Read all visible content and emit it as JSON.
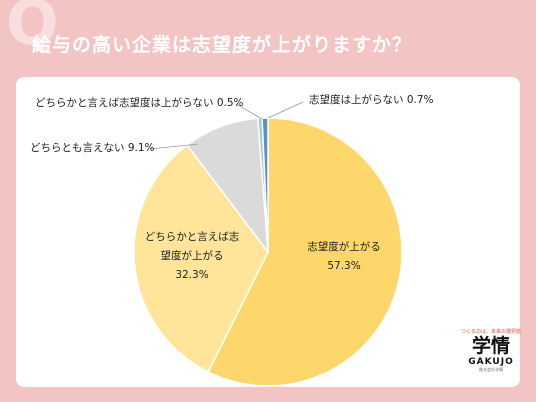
{
  "header": {
    "question_mark": "Q",
    "title": "給与の高い企業は志望度が上がりますか？"
  },
  "logo": {
    "tagline": "つくるのは、未来の選択肢",
    "name": "学情",
    "name_en": "GAKUJO",
    "sub": "株式会社学情"
  },
  "chart_data": {
    "type": "pie",
    "slices": [
      {
        "name": "志望度が上がる",
        "value": 57.3,
        "label_lines": [
          "志望度が上がる",
          "57.3%"
        ],
        "color": "#fdd76b"
      },
      {
        "name": "どちらかと言えば志望度が上がる",
        "value": 32.3,
        "label_lines": [
          "どちらかと言えば志",
          "望度が上がる",
          "32.3%"
        ],
        "color": "#fee59a"
      },
      {
        "name": "どちらとも言えない",
        "value": 9.1,
        "label_lines": [
          "どちらとも言えない 9.1%"
        ],
        "color": "#dadada"
      },
      {
        "name": "どちらかと言えば志望度は上がらない",
        "value": 0.5,
        "label_lines": [
          "どちらかと言えば志望度は上がらない 0.5%"
        ],
        "color": "#9ec6e6"
      },
      {
        "name": "志望度は上がらない",
        "value": 0.7,
        "label_lines": [
          "志望度は上がらない 0.7%"
        ],
        "color": "#5a8fc8"
      }
    ]
  }
}
